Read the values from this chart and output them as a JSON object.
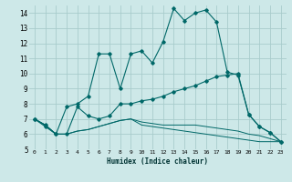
{
  "xlabel": "Humidex (Indice chaleur)",
  "xlim": [
    -0.5,
    23.5
  ],
  "ylim": [
    5,
    14.5
  ],
  "yticks": [
    5,
    6,
    7,
    8,
    9,
    10,
    11,
    12,
    13,
    14
  ],
  "xticks": [
    0,
    1,
    2,
    3,
    4,
    5,
    6,
    7,
    8,
    9,
    10,
    11,
    12,
    13,
    14,
    15,
    16,
    17,
    18,
    19,
    20,
    21,
    22,
    23
  ],
  "bg_color": "#cde8e8",
  "grid_color": "#a8cccc",
  "line_color": "#006868",
  "series": [
    [
      7.0,
      6.5,
      6.0,
      7.8,
      8.0,
      8.5,
      11.3,
      11.3,
      9.0,
      11.3,
      11.5,
      10.7,
      12.1,
      14.3,
      13.5,
      14.0,
      14.2,
      13.4,
      10.1,
      9.9,
      7.3,
      6.5,
      6.1,
      5.5
    ],
    [
      7.0,
      6.6,
      6.0,
      6.0,
      7.8,
      7.2,
      7.0,
      7.2,
      8.0,
      8.0,
      8.2,
      8.3,
      8.5,
      8.8,
      9.0,
      9.2,
      9.5,
      9.8,
      9.9,
      10.0,
      7.3,
      6.5,
      6.1,
      5.5
    ],
    [
      7.0,
      6.6,
      6.0,
      6.0,
      6.2,
      6.3,
      6.5,
      6.7,
      6.9,
      7.0,
      6.8,
      6.7,
      6.6,
      6.6,
      6.6,
      6.6,
      6.5,
      6.4,
      6.3,
      6.2,
      6.0,
      5.9,
      5.7,
      5.5
    ],
    [
      7.0,
      6.6,
      6.0,
      6.0,
      6.2,
      6.3,
      6.5,
      6.7,
      6.9,
      7.0,
      6.6,
      6.5,
      6.4,
      6.3,
      6.2,
      6.1,
      6.0,
      5.9,
      5.8,
      5.7,
      5.6,
      5.5,
      5.5,
      5.5
    ]
  ]
}
